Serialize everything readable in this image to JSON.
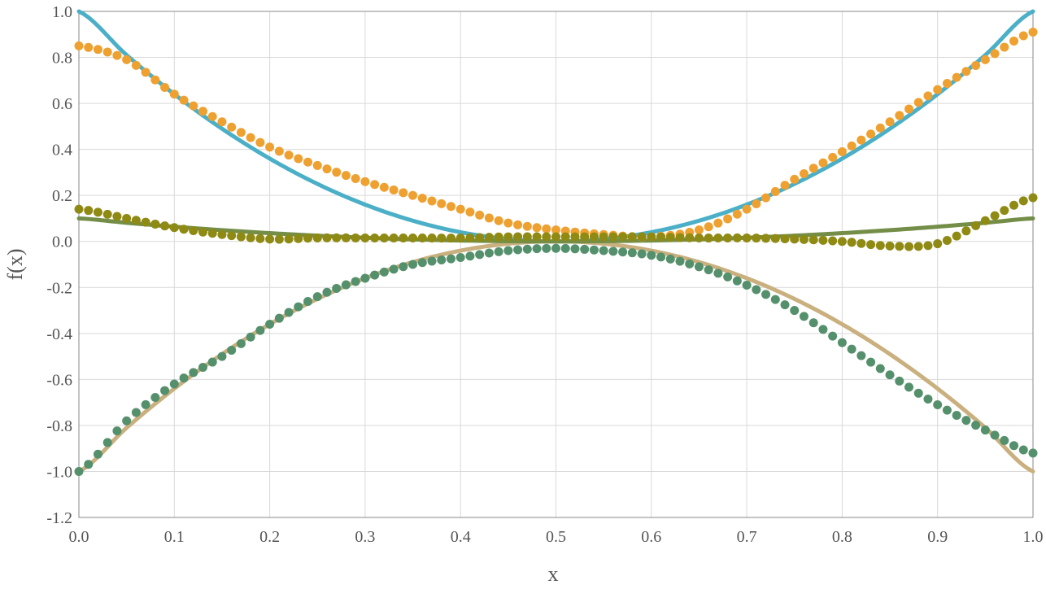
{
  "chart_data": {
    "type": "scatter",
    "title": "",
    "xlabel": "x",
    "ylabel": "f(x)",
    "xlim": [
      0.0,
      1.0
    ],
    "ylim": [
      -1.2,
      1.0
    ],
    "grid": true,
    "legend": "none",
    "x_ticks": [
      "0.0",
      "0.1",
      "0.2",
      "0.3",
      "0.4",
      "0.5",
      "0.6",
      "0.7",
      "0.8",
      "0.9",
      "1.0"
    ],
    "y_ticks": [
      "1.0",
      "0.8",
      "0.6",
      "0.4",
      "0.2",
      "0.0",
      "-0.2",
      "-0.4",
      "-0.6",
      "-0.8",
      "-1.0",
      "-1.2"
    ],
    "series": [
      {
        "kind": "line",
        "color": "#4aafc7",
        "x": [
          0.0,
          0.05,
          0.1,
          0.15,
          0.2,
          0.25,
          0.3,
          0.35,
          0.4,
          0.45,
          0.5,
          0.55,
          0.6,
          0.65,
          0.7,
          0.75,
          0.8,
          0.85,
          0.9,
          0.95,
          1.0
        ],
        "y": [
          1.0,
          0.81,
          0.64,
          0.49,
          0.36,
          0.25,
          0.16,
          0.09,
          0.04,
          0.01,
          0.0,
          0.01,
          0.04,
          0.09,
          0.16,
          0.25,
          0.36,
          0.49,
          0.64,
          0.81,
          1.0
        ]
      },
      {
        "kind": "line",
        "color": "#c9b07e",
        "x": [
          0.0,
          0.05,
          0.1,
          0.15,
          0.2,
          0.25,
          0.3,
          0.35,
          0.4,
          0.45,
          0.5,
          0.55,
          0.6,
          0.65,
          0.7,
          0.75,
          0.8,
          0.85,
          0.9,
          0.95,
          1.0
        ],
        "y": [
          -1.0,
          -0.81,
          -0.64,
          -0.49,
          -0.36,
          -0.25,
          -0.16,
          -0.09,
          -0.04,
          -0.01,
          0.0,
          -0.01,
          -0.04,
          -0.09,
          -0.16,
          -0.25,
          -0.36,
          -0.49,
          -0.64,
          -0.81,
          -1.0
        ]
      },
      {
        "kind": "line",
        "color": "#748e48",
        "x": [
          0.0,
          0.05,
          0.1,
          0.15,
          0.2,
          0.25,
          0.3,
          0.35,
          0.4,
          0.45,
          0.5,
          0.55,
          0.6,
          0.65,
          0.7,
          0.75,
          0.8,
          0.85,
          0.9,
          0.95,
          1.0
        ],
        "y": [
          0.1,
          0.081,
          0.064,
          0.049,
          0.036,
          0.025,
          0.016,
          0.009,
          0.004,
          0.001,
          0.0,
          0.001,
          0.004,
          0.009,
          0.016,
          0.025,
          0.036,
          0.049,
          0.064,
          0.081,
          0.1
        ]
      },
      {
        "kind": "points",
        "color": "#eea130",
        "x": [
          0.0,
          0.05,
          0.1,
          0.15,
          0.2,
          0.25,
          0.3,
          0.35,
          0.4,
          0.45,
          0.5,
          0.55,
          0.6,
          0.65,
          0.7,
          0.75,
          0.8,
          0.85,
          0.9,
          0.95,
          1.0
        ],
        "y": [
          0.85,
          0.79,
          0.64,
          0.52,
          0.41,
          0.33,
          0.26,
          0.2,
          0.14,
          0.08,
          0.05,
          0.03,
          0.02,
          0.05,
          0.14,
          0.27,
          0.39,
          0.52,
          0.66,
          0.79,
          0.91
        ]
      },
      {
        "kind": "points",
        "color": "#55906c",
        "x": [
          0.0,
          0.05,
          0.1,
          0.15,
          0.2,
          0.25,
          0.3,
          0.35,
          0.4,
          0.45,
          0.5,
          0.55,
          0.6,
          0.65,
          0.7,
          0.75,
          0.8,
          0.85,
          0.9,
          0.95,
          1.0
        ],
        "y": [
          -1.0,
          -0.78,
          -0.62,
          -0.5,
          -0.36,
          -0.24,
          -0.16,
          -0.1,
          -0.07,
          -0.04,
          -0.03,
          -0.04,
          -0.06,
          -0.11,
          -0.19,
          -0.3,
          -0.44,
          -0.58,
          -0.71,
          -0.82,
          -0.92
        ]
      },
      {
        "kind": "points",
        "color": "#8f8a13",
        "x": [
          0.0,
          0.05,
          0.1,
          0.15,
          0.2,
          0.25,
          0.3,
          0.35,
          0.4,
          0.45,
          0.5,
          0.55,
          0.6,
          0.65,
          0.7,
          0.75,
          0.8,
          0.85,
          0.9,
          0.95,
          1.0
        ],
        "y": [
          0.14,
          0.1,
          0.06,
          0.03,
          0.01,
          0.015,
          0.015,
          0.015,
          0.015,
          0.02,
          0.02,
          0.02,
          0.02,
          0.015,
          0.015,
          0.01,
          0.0,
          -0.02,
          -0.01,
          0.09,
          0.19
        ]
      }
    ]
  }
}
